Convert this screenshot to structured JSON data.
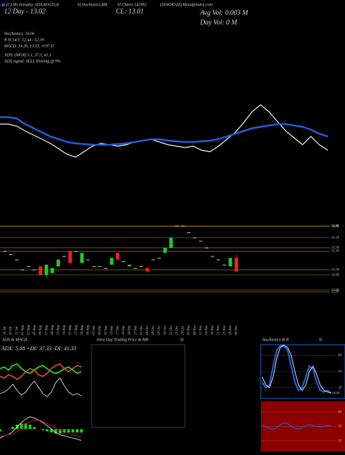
{
  "header": {
    "line1": [
      "(C) Sbi Intraday ADX,MACD,B",
      "SI,Stochastics,MR",
      "SI Charts 542992",
      "(INNOKAIZ) MunafaSutra.com"
    ],
    "line2": [
      "12  Day - 13.02",
      "CL: 13.01"
    ],
    "avg_vol": "Avg Vol: 0.003 M",
    "day_vol": "Day Vol: 0   M",
    "info": [
      "Stochastics: 10.06",
      "R                SI 14/5: 52.44 / 52.39",
      "MACD: 14.36, 15.33, -0.97 D",
      "ADX:                 (MGR) 5.1, 37.3, 41.3",
      "ADX  signal: SELL  Slowing @ 9%"
    ]
  },
  "chart_data": [
    {
      "type": "line",
      "ylim": [
        0,
        100
      ],
      "series": [
        {
          "color": "#ffffff",
          "values": [
            60,
            60,
            57,
            50,
            44,
            38,
            32,
            24,
            16,
            12,
            20,
            28,
            32,
            30,
            28,
            30,
            34,
            36,
            38,
            34,
            30,
            28,
            26,
            28,
            22,
            20,
            28,
            38,
            48,
            62,
            78,
            88,
            78,
            64,
            50,
            40,
            30,
            42,
            30,
            22
          ]
        },
        {
          "color": "#1f5fe0",
          "values": [
            70,
            70,
            68,
            60,
            54,
            48,
            42,
            38,
            34,
            32,
            31,
            30,
            30,
            30,
            31,
            32,
            34,
            36,
            38,
            38,
            36,
            35,
            34,
            34,
            35,
            36,
            38,
            42,
            46,
            50,
            54,
            56,
            58,
            60,
            60,
            58,
            56,
            52,
            46,
            42
          ]
        }
      ]
    },
    {
      "type": "candlestick",
      "ylim": [
        12.6,
        17.0
      ],
      "yticks": [
        16.88,
        16.86,
        16.19,
        15.59,
        15.39,
        14.29,
        13.99,
        13.09,
        12.99
      ],
      "categories": [
        "29 Jul",
        "30 Jul",
        "31 Jul",
        "01 Aug",
        "02 Aug",
        "05 Aug",
        "06 Aug",
        "07 Aug",
        "08 Aug",
        "13 Aug",
        "14 Aug",
        "20 Aug",
        "22 Aug",
        "26 Aug",
        "30 Aug",
        "02 Sep",
        "06 Sep",
        "10 Sep",
        "13 Sep",
        "17 Sep",
        "20 Sep",
        "24 Sep",
        "27 Sep",
        "01 Oct",
        "04 Oct",
        "08 Oct",
        "14 Oct",
        "18 Oct",
        "22 Oct",
        "25 Oct",
        "29 Oct",
        "05 Nov",
        "08 Nov",
        "12 Nov",
        "14 Nov",
        "18 Nov",
        "21 Nov",
        "25 Nov",
        "28 Nov",
        "06 Dec"
      ],
      "open": [
        15.4,
        15.2,
        14.9,
        14.3,
        14.5,
        14.3,
        14.5,
        14.0,
        14.1,
        14.5,
        15.1,
        15.4,
        15.4,
        14.7,
        14.9,
        14.5,
        14.5,
        14.4,
        14.6,
        15.3,
        14.8,
        14.5,
        14.4,
        14.5,
        14.4,
        14.9,
        15.0,
        15.3,
        15.6,
        16.9,
        16.9,
        16.5,
        16.2,
        16.0,
        15.6,
        15.1,
        14.9,
        14.6,
        14.5,
        15.0
      ],
      "high": [
        15.4,
        15.2,
        14.9,
        14.3,
        14.5,
        14.3,
        14.5,
        14.6,
        14.4,
        14.9,
        15.1,
        15.4,
        15.4,
        15.3,
        14.9,
        14.5,
        14.5,
        14.4,
        15.0,
        15.3,
        14.8,
        14.6,
        14.4,
        14.5,
        14.4,
        14.9,
        15.0,
        15.6,
        16.2,
        16.9,
        16.9,
        16.5,
        16.2,
        16.0,
        15.6,
        15.1,
        14.9,
        14.6,
        15.0,
        15.2
      ],
      "low": [
        15.4,
        15.2,
        14.9,
        14.3,
        14.5,
        14.3,
        14.0,
        13.8,
        14.1,
        14.5,
        15.1,
        14.7,
        15.4,
        14.7,
        14.9,
        14.5,
        14.5,
        14.4,
        14.6,
        14.9,
        14.8,
        14.5,
        14.4,
        14.5,
        14.2,
        14.9,
        15.0,
        15.3,
        15.6,
        16.9,
        16.9,
        16.5,
        16.2,
        16.0,
        15.6,
        15.1,
        14.9,
        14.6,
        14.5,
        14.2
      ],
      "close": [
        15.4,
        15.2,
        14.9,
        14.3,
        14.5,
        14.3,
        14.0,
        14.6,
        14.4,
        14.9,
        15.1,
        14.7,
        15.4,
        15.3,
        14.9,
        14.5,
        14.5,
        14.4,
        15.0,
        14.9,
        14.8,
        14.6,
        14.4,
        14.5,
        14.2,
        14.9,
        15.0,
        15.6,
        16.2,
        16.9,
        16.9,
        16.5,
        16.2,
        16.0,
        15.6,
        15.1,
        14.9,
        14.6,
        15.0,
        14.2
      ],
      "up_color": "#22cc22",
      "down_color": "#ee2222",
      "grid_color": "#b8860b"
    },
    {
      "type": "adx_macd",
      "title": "ADX  & MACD",
      "label": "ADX: 5.08  +DI: 37.33  -DI: 41.33",
      "ylim": [
        0,
        60
      ],
      "series": [
        {
          "color": "#22dd22",
          "values": [
            40,
            42,
            38,
            44,
            46,
            40,
            36,
            34,
            38,
            42,
            44,
            40,
            36,
            34,
            36,
            40,
            42,
            38,
            34,
            36
          ]
        },
        {
          "color": "#c8502a",
          "values": [
            30,
            28,
            32,
            30,
            26,
            30,
            36,
            40,
            38,
            32,
            30,
            34,
            40,
            44,
            46,
            40,
            36,
            40,
            44,
            42
          ]
        },
        {
          "color": "#ffffff",
          "values": [
            8,
            10,
            14,
            20,
            12,
            6,
            10,
            18,
            24,
            16,
            8,
            4,
            10,
            22,
            28,
            18,
            10,
            6,
            8,
            5
          ]
        }
      ],
      "macd_ylim": [
        -2,
        2
      ],
      "macd": [
        {
          "color": "#ffffff",
          "values": [
            -0.8,
            -0.6,
            -0.5,
            -0.2,
            0.2,
            0.6,
            0.9,
            1.1,
            1.0,
            0.8,
            0.6,
            0.3,
            0.0,
            -0.3,
            -0.5,
            -0.6,
            -0.7,
            -0.8,
            -0.9,
            -1.0
          ]
        },
        {
          "color": "#ee2222",
          "values": [
            -0.6,
            -0.6,
            -0.5,
            -0.4,
            -0.2,
            0.1,
            0.4,
            0.7,
            0.8,
            0.8,
            0.7,
            0.5,
            0.3,
            0.1,
            -0.1,
            -0.3,
            -0.4,
            -0.5,
            -0.6,
            -0.7
          ]
        }
      ],
      "histogram": {
        "color": "#22cc22",
        "values": [
          -0.2,
          0.0,
          0.0,
          0.2,
          0.4,
          0.5,
          0.5,
          0.4,
          0.2,
          0.0,
          -0.1,
          -0.2,
          -0.3,
          -0.4,
          -0.4,
          -0.3,
          -0.3,
          -0.3,
          -0.3,
          -0.3
        ]
      }
    },
    {
      "type": "intraday",
      "title": "Intra Day Trading Price & MR",
      "title2": "SI"
    },
    {
      "type": "stochastics",
      "title": "Stochastics & R",
      "title2": "SI",
      "ylim": [
        0,
        100
      ],
      "yticks": [
        80,
        50,
        20
      ],
      "value_label": "10.06",
      "series": [
        {
          "color": "#1f5fe0",
          "values": [
            30,
            20,
            25,
            60,
            90,
            98,
            98,
            90,
            60,
            30,
            15,
            20,
            40,
            60,
            55,
            30,
            15,
            12,
            15,
            10
          ]
        },
        {
          "color": "#ffffff",
          "values": [
            40,
            25,
            20,
            40,
            75,
            95,
            99,
            95,
            80,
            50,
            25,
            15,
            25,
            50,
            60,
            45,
            25,
            15,
            12,
            10
          ]
        }
      ],
      "rsi_ylim": [
        0,
        100
      ],
      "rsi_yticks": [
        80,
        50,
        20
      ],
      "rsi_bg": "#8b0000",
      "rsi": {
        "color": "#1f5fe0",
        "values": [
          52,
          50,
          46,
          44,
          48,
          54,
          58,
          56,
          50,
          46,
          44,
          48,
          52,
          54,
          52,
          50,
          48,
          50,
          52,
          52
        ]
      }
    }
  ]
}
